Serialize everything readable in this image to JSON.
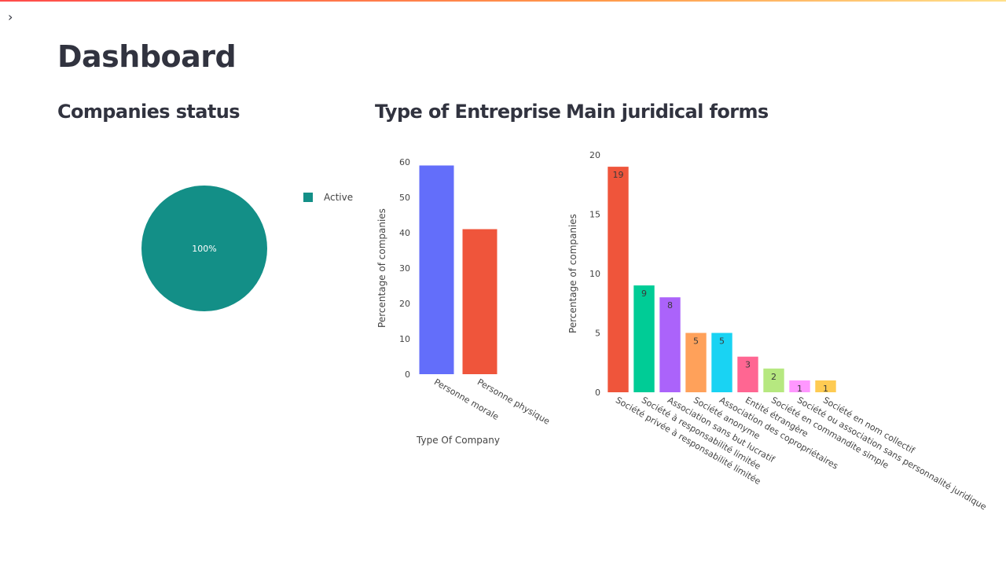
{
  "page": {
    "title": "Dashboard",
    "sidebar_toggle": "›"
  },
  "colors": {
    "text": "#31333f",
    "header_accent": "#ff4b4b"
  },
  "chart_data": [
    {
      "type": "pie",
      "title": "Companies status",
      "labels": [
        "Active"
      ],
      "values": [
        100
      ],
      "slice_labels": [
        "100%"
      ],
      "colors": [
        "#138f87"
      ],
      "legend": "right",
      "legend_entries": [
        "Active"
      ]
    },
    {
      "type": "bar",
      "title": "Type of Entreprise",
      "categories": [
        "Personne morale",
        "Personne physique"
      ],
      "values": [
        59,
        41
      ],
      "colors": [
        "#636efa",
        "#ef553b"
      ],
      "xlabel": "Type Of Company",
      "ylabel": "Percentage of companies",
      "ylim": [
        0,
        60
      ],
      "yticks": [
        0,
        10,
        20,
        30,
        40,
        50,
        60
      ],
      "grid": false
    },
    {
      "type": "bar",
      "title": "Main juridical forms",
      "categories": [
        "Société privée à responsabilité limitée",
        "Société à responsabilité limitée",
        "Association sans but lucratif",
        "Société anonyme",
        "Association des copropriétaires",
        "Entité étrangère",
        "Société en commandite simple",
        "Société ou association sans personnalité juridique",
        "Société en nom collectif"
      ],
      "values": [
        19,
        9,
        8,
        5,
        5,
        3,
        2,
        1,
        1
      ],
      "data_labels": [
        "19",
        "9",
        "8",
        "5",
        "5",
        "3",
        "2",
        "1",
        "1"
      ],
      "colors": [
        "#ef553b",
        "#00cc96",
        "#ab63fa",
        "#ffa15a",
        "#19d3f3",
        "#ff6692",
        "#b6e880",
        "#ff97ff",
        "#fecb52"
      ],
      "xlabel": "",
      "ylabel": "Percentage of companies",
      "ylim": [
        0,
        20
      ],
      "yticks": [
        0,
        5,
        10,
        15,
        20
      ],
      "grid": false
    }
  ]
}
